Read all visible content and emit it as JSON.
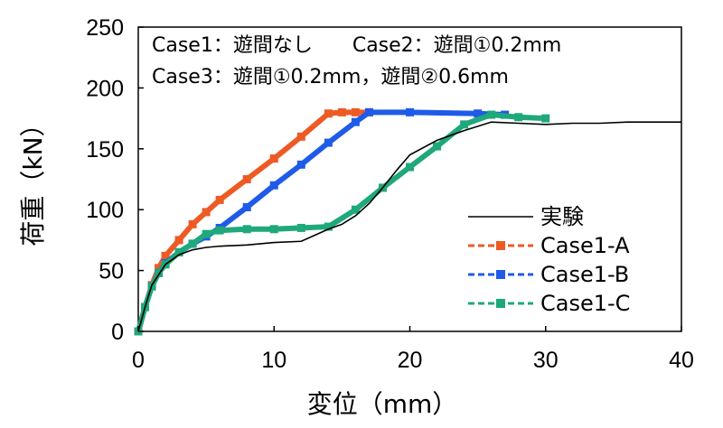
{
  "chart_data": {
    "type": "line",
    "xlabel": "変位（mm）",
    "ylabel": "荷重（kN）",
    "xlim": [
      0,
      40
    ],
    "ylim": [
      0,
      250
    ],
    "x_ticks": [
      "0",
      "10",
      "20",
      "30",
      "40"
    ],
    "y_ticks": [
      "0",
      "50",
      "100",
      "150",
      "200",
      "250"
    ],
    "annotations": [
      "Case1：遊間なし　　Case2：遊間①0.2mm",
      "Case3：遊間①0.2mm，遊間②0.6mm"
    ],
    "legend_position": "bottom-right",
    "grid": false,
    "series": [
      {
        "name": "実験",
        "color": "#000000",
        "style": "solid",
        "x": [
          0,
          0.5,
          1,
          2,
          3,
          4,
          5,
          6,
          8,
          10,
          12,
          13,
          14,
          15,
          16,
          17,
          18,
          19,
          20,
          22,
          24,
          26,
          28,
          30,
          32,
          34,
          36,
          38,
          40
        ],
        "y": [
          0,
          20,
          38,
          55,
          63,
          67,
          69,
          70,
          71,
          73,
          74,
          79,
          84,
          88,
          95,
          105,
          118,
          132,
          145,
          157,
          165,
          172,
          171,
          170,
          171,
          171,
          172,
          172,
          172
        ]
      },
      {
        "name": "Case1-A",
        "color": "#ee5a24",
        "style": "dashed-square",
        "x": [
          0,
          0.5,
          1,
          1.5,
          2,
          3,
          4,
          5,
          6,
          8,
          10,
          12,
          14,
          15,
          16,
          17
        ],
        "y": [
          0,
          20,
          38,
          52,
          62,
          75,
          88,
          98,
          108,
          125,
          142,
          160,
          179,
          180,
          180,
          180
        ]
      },
      {
        "name": "Case1-B",
        "color": "#1f5be8",
        "style": "dashed-square",
        "x": [
          0,
          0.5,
          1,
          1.5,
          2,
          3,
          4,
          5,
          6,
          8,
          10,
          12,
          14,
          16,
          17,
          20,
          25,
          27
        ],
        "y": [
          0,
          20,
          37,
          48,
          56,
          65,
          72,
          78,
          85,
          102,
          120,
          137,
          155,
          172,
          180,
          180,
          179,
          178
        ]
      },
      {
        "name": "Case1-C",
        "color": "#1ea87c",
        "style": "dashed-square",
        "x": [
          0,
          0.5,
          1,
          1.5,
          2,
          3,
          4,
          5,
          6,
          8,
          10,
          12,
          14,
          16,
          18,
          20,
          22,
          24,
          26,
          28,
          30
        ],
        "y": [
          0,
          20,
          37,
          48,
          55,
          65,
          72,
          80,
          83,
          84,
          84,
          85,
          86,
          100,
          118,
          135,
          152,
          170,
          178,
          176,
          175
        ]
      }
    ]
  }
}
